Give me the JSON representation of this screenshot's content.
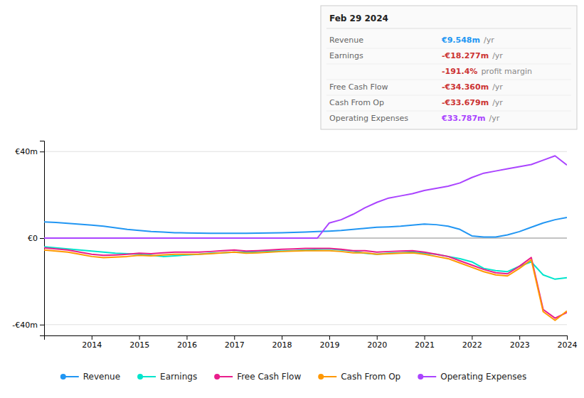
{
  "chart_data": {
    "type": "line",
    "title": "Feb 29 2024",
    "x": [
      2013.0,
      2013.25,
      2013.5,
      2013.75,
      2014.0,
      2014.25,
      2014.5,
      2014.75,
      2015.0,
      2015.25,
      2015.5,
      2015.75,
      2016.0,
      2016.25,
      2016.5,
      2016.75,
      2017.0,
      2017.25,
      2017.5,
      2017.75,
      2018.0,
      2018.25,
      2018.5,
      2018.75,
      2019.0,
      2019.25,
      2019.5,
      2019.75,
      2020.0,
      2020.25,
      2020.5,
      2020.75,
      2021.0,
      2021.25,
      2021.5,
      2021.75,
      2022.0,
      2022.25,
      2022.5,
      2022.75,
      2023.0,
      2023.25,
      2023.5,
      2023.75,
      2024.0
    ],
    "series": [
      {
        "name": "Revenue",
        "color": "#2196f3",
        "values": [
          7.5,
          7.2,
          6.8,
          6.4,
          6.0,
          5.5,
          4.8,
          4.0,
          3.5,
          3.0,
          2.8,
          2.5,
          2.4,
          2.3,
          2.2,
          2.2,
          2.2,
          2.2,
          2.3,
          2.4,
          2.5,
          2.6,
          2.8,
          3.0,
          3.2,
          3.5,
          4.0,
          4.5,
          5.0,
          5.2,
          5.5,
          6.0,
          6.5,
          6.2,
          5.5,
          4.0,
          1.0,
          0.5,
          0.5,
          1.5,
          3.0,
          5.0,
          7.0,
          8.5,
          9.548
        ]
      },
      {
        "name": "Earnings",
        "color": "#00e5cc",
        "values": [
          -4.0,
          -4.5,
          -5.0,
          -5.5,
          -6.0,
          -6.5,
          -7.0,
          -7.2,
          -7.5,
          -8.0,
          -8.5,
          -8.2,
          -7.8,
          -7.5,
          -7.0,
          -6.8,
          -6.5,
          -6.5,
          -6.2,
          -6.0,
          -6.0,
          -5.8,
          -5.5,
          -5.2,
          -5.0,
          -5.5,
          -6.0,
          -7.0,
          -7.5,
          -7.0,
          -6.8,
          -6.5,
          -7.0,
          -7.5,
          -8.5,
          -9.5,
          -11.0,
          -14.0,
          -15.0,
          -15.5,
          -13.0,
          -11.0,
          -17.0,
          -19.0,
          -18.277
        ]
      },
      {
        "name": "Free Cash Flow",
        "color": "#e91e8c",
        "values": [
          -4.5,
          -5.0,
          -5.5,
          -6.5,
          -7.5,
          -8.0,
          -7.8,
          -7.5,
          -7.0,
          -7.2,
          -6.8,
          -6.5,
          -6.5,
          -6.5,
          -6.2,
          -5.8,
          -5.5,
          -6.0,
          -5.8,
          -5.5,
          -5.2,
          -5.0,
          -4.8,
          -4.8,
          -4.8,
          -5.2,
          -5.8,
          -5.8,
          -6.5,
          -6.2,
          -6.0,
          -5.8,
          -6.5,
          -7.5,
          -8.5,
          -10.5,
          -12.5,
          -14.5,
          -16.0,
          -16.5,
          -13.0,
          -9.0,
          -33.0,
          -37.0,
          -34.36
        ]
      },
      {
        "name": "Cash From Op",
        "color": "#ff9800",
        "values": [
          -5.5,
          -6.0,
          -6.5,
          -7.5,
          -8.5,
          -9.0,
          -8.8,
          -8.5,
          -8.0,
          -8.2,
          -7.8,
          -7.5,
          -7.5,
          -7.5,
          -7.2,
          -6.8,
          -6.5,
          -7.0,
          -6.8,
          -6.5,
          -6.2,
          -6.0,
          -5.8,
          -5.8,
          -5.8,
          -6.2,
          -6.8,
          -6.8,
          -7.5,
          -7.2,
          -7.0,
          -6.8,
          -7.5,
          -8.5,
          -9.5,
          -11.5,
          -13.5,
          -15.5,
          -17.0,
          -17.5,
          -14.0,
          -10.0,
          -34.0,
          -38.0,
          -33.679
        ]
      },
      {
        "name": "Operating Expenses",
        "color": "#aa44ff",
        "values": [
          0.0,
          0.0,
          0.0,
          0.0,
          0.0,
          0.0,
          0.0,
          0.0,
          0.0,
          0.0,
          0.0,
          0.0,
          0.0,
          0.0,
          0.0,
          0.0,
          0.0,
          0.0,
          0.0,
          0.0,
          0.0,
          0.0,
          0.0,
          0.0,
          7.0,
          8.5,
          11.0,
          14.0,
          16.5,
          18.5,
          19.5,
          20.5,
          22.0,
          23.0,
          24.0,
          25.5,
          28.0,
          30.0,
          31.0,
          32.0,
          33.0,
          34.0,
          36.0,
          38.0,
          33.787
        ]
      }
    ],
    "xlim": [
      2013.0,
      2024.0
    ],
    "xticks": [
      2014,
      2015,
      2016,
      2017,
      2018,
      2019,
      2020,
      2021,
      2022,
      2023,
      2024
    ],
    "ylim": [
      -45,
      45
    ],
    "yticks": [
      {
        "value": -40,
        "label": "-€40m"
      },
      {
        "value": 0,
        "label": "€0"
      },
      {
        "value": 40,
        "label": "€40m"
      }
    ],
    "grid": true,
    "legend": "bottom",
    "annotations": [
      {
        "label": "Revenue",
        "text": "€9.548m",
        "unit": "/yr",
        "color": "#2196f3"
      },
      {
        "label": "Earnings",
        "text": "-€18.277m",
        "unit": "/yr",
        "color": "#cc3333"
      },
      {
        "text": "-191.4%",
        "unit": "profit margin",
        "color": "#cc3333"
      },
      {
        "label": "Free Cash Flow",
        "text": "-€34.360m",
        "unit": "/yr",
        "color": "#cc3333"
      },
      {
        "label": "Cash From Op",
        "text": "-€33.679m",
        "unit": "/yr",
        "color": "#cc3333"
      },
      {
        "label": "Operating Expenses",
        "text": "€33.787m",
        "unit": "/yr",
        "color": "#aa44ff"
      }
    ]
  }
}
